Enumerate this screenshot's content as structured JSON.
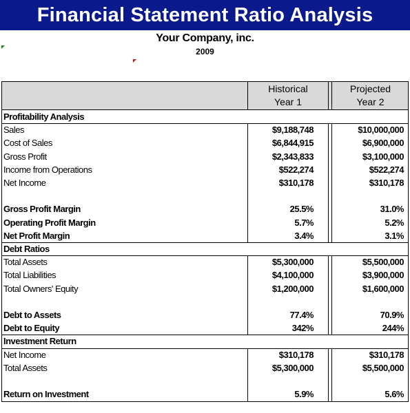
{
  "header": {
    "title": "Financial Statement Ratio Analysis",
    "company": "Your Company, inc.",
    "year": "2009"
  },
  "columns": {
    "historical": [
      "Historical",
      "Year 1"
    ],
    "projected": [
      "Projected",
      "Year 2"
    ]
  },
  "rows": [
    {
      "label": "Profitability Analysis",
      "type": "section"
    },
    {
      "label": "Sales",
      "y1": "$9,188,748",
      "y2": "$10,000,000"
    },
    {
      "label": "Cost of Sales",
      "y1": "$6,844,915",
      "y2": "$6,900,000"
    },
    {
      "label": "Gross Profit",
      "y1": "$2,343,833",
      "y2": "$3,100,000"
    },
    {
      "label": "Income from Operations",
      "y1": "$522,274",
      "y2": "$522,274"
    },
    {
      "label": "Net Income",
      "y1": "$310,178",
      "y2": "$310,178"
    },
    {
      "label": "",
      "type": "blank"
    },
    {
      "label": "Gross Profit Margin",
      "y1": "25.5%",
      "y2": "31.0%",
      "type": "bold"
    },
    {
      "label": "Operating Profit Margin",
      "y1": "5.7%",
      "y2": "5.2%",
      "type": "bold"
    },
    {
      "label": "Net Profit Margin",
      "y1": "3.4%",
      "y2": "3.1%",
      "type": "bold"
    },
    {
      "label": "Debt Ratios",
      "type": "section"
    },
    {
      "label": "Total Assets",
      "y1": "$5,300,000",
      "y2": "$5,500,000"
    },
    {
      "label": "Total Liabilities",
      "y1": "$4,100,000",
      "y2": "$3,900,000"
    },
    {
      "label": "Total Owners' Equity",
      "y1": "$1,200,000",
      "y2": "$1,600,000"
    },
    {
      "label": "",
      "type": "blank"
    },
    {
      "label": "Debt to Assets",
      "y1": "77.4%",
      "y2": "70.9%",
      "type": "bold"
    },
    {
      "label": "Debt to Equity",
      "y1": "342%",
      "y2": "244%",
      "type": "bold"
    },
    {
      "label": "Investment Return",
      "type": "section"
    },
    {
      "label": "Net Income",
      "y1": "$310,178",
      "y2": "$310,178"
    },
    {
      "label": "Total Assets",
      "y1": "$5,300,000",
      "y2": "$5,500,000"
    },
    {
      "label": "",
      "type": "blank"
    },
    {
      "label": "Return on Investment",
      "y1": "5.9%",
      "y2": "5.6%",
      "type": "bold"
    }
  ]
}
